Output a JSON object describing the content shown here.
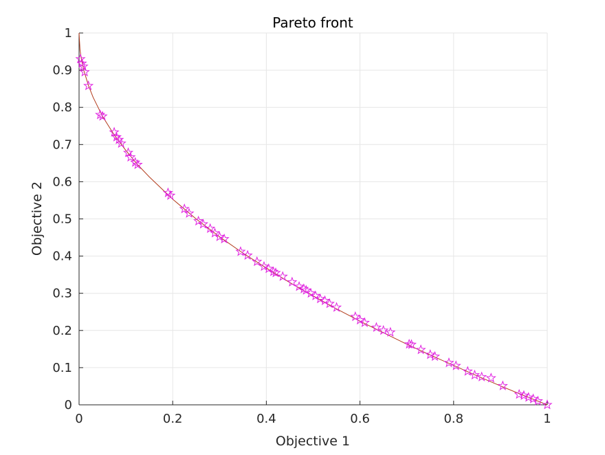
{
  "chart_data": {
    "type": "scatter",
    "title": "Pareto front",
    "xlabel": "Objective 1",
    "ylabel": "Objective 2",
    "xlim": [
      0,
      1
    ],
    "ylim": [
      0,
      1
    ],
    "xticks": [
      0,
      0.2,
      0.4,
      0.6,
      0.8,
      1
    ],
    "xtick_labels": [
      "0",
      "0.2",
      "0.4",
      "0.6",
      "0.8",
      "1"
    ],
    "yticks": [
      0,
      0.1,
      0.2,
      0.3,
      0.4,
      0.5,
      0.6,
      0.7,
      0.8,
      0.9,
      1
    ],
    "ytick_labels": [
      "0",
      "0.1",
      "0.2",
      "0.3",
      "0.4",
      "0.5",
      "0.6",
      "0.7",
      "0.8",
      "0.9",
      "1"
    ],
    "grid": true,
    "colors": {
      "line": "#b23a1a",
      "marker": "#e020e0",
      "grid": "#e6e6e6",
      "axis": "#262626"
    },
    "series": [
      {
        "type": "line",
        "x": [
          0,
          0.002,
          0.005,
          0.01,
          0.02,
          0.03,
          0.05,
          0.075,
          0.1,
          0.125,
          0.15,
          0.2,
          0.25,
          0.3,
          0.35,
          0.4,
          0.45,
          0.5,
          0.55,
          0.6,
          0.65,
          0.7,
          0.75,
          0.8,
          0.85,
          0.9,
          0.95,
          1
        ],
        "y": [
          1,
          0.955,
          0.929,
          0.9,
          0.859,
          0.827,
          0.776,
          0.726,
          0.684,
          0.646,
          0.613,
          0.553,
          0.5,
          0.452,
          0.408,
          0.368,
          0.329,
          0.293,
          0.258,
          0.225,
          0.194,
          0.163,
          0.134,
          0.106,
          0.078,
          0.051,
          0.025,
          0
        ]
      },
      {
        "type": "scatter",
        "marker": "pentagram",
        "x": [
          0.003,
          0.006,
          0.009,
          0.012,
          0.02,
          0.045,
          0.05,
          0.075,
          0.08,
          0.085,
          0.09,
          0.105,
          0.11,
          0.12,
          0.125,
          0.19,
          0.195,
          0.225,
          0.235,
          0.255,
          0.265,
          0.28,
          0.29,
          0.3,
          0.31,
          0.345,
          0.36,
          0.38,
          0.395,
          0.405,
          0.415,
          0.42,
          0.435,
          0.455,
          0.47,
          0.48,
          0.485,
          0.495,
          0.505,
          0.515,
          0.525,
          0.535,
          0.55,
          0.59,
          0.6,
          0.61,
          0.635,
          0.65,
          0.665,
          0.705,
          0.71,
          0.73,
          0.75,
          0.76,
          0.79,
          0.805,
          0.83,
          0.845,
          0.86,
          0.88,
          0.905,
          0.94,
          0.95,
          0.96,
          0.97,
          0.98,
          1
        ],
        "y": [
          0.93,
          0.918,
          0.91,
          0.895,
          0.858,
          0.78,
          0.776,
          0.733,
          0.72,
          0.713,
          0.703,
          0.678,
          0.666,
          0.652,
          0.646,
          0.57,
          0.563,
          0.527,
          0.515,
          0.494,
          0.486,
          0.474,
          0.462,
          0.452,
          0.446,
          0.412,
          0.402,
          0.385,
          0.372,
          0.366,
          0.358,
          0.355,
          0.345,
          0.33,
          0.318,
          0.312,
          0.308,
          0.3,
          0.293,
          0.285,
          0.28,
          0.272,
          0.262,
          0.237,
          0.228,
          0.221,
          0.208,
          0.2,
          0.195,
          0.163,
          0.162,
          0.148,
          0.135,
          0.13,
          0.113,
          0.105,
          0.09,
          0.08,
          0.075,
          0.072,
          0.051,
          0.028,
          0.025,
          0.02,
          0.016,
          0.01,
          0
        ]
      }
    ]
  }
}
